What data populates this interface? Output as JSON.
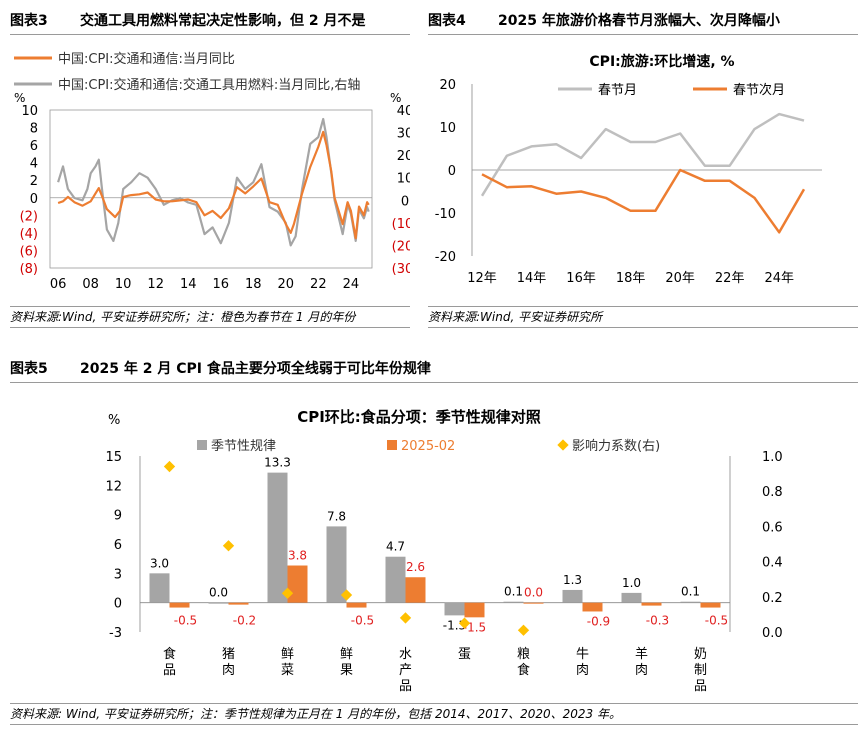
{
  "figure3": {
    "header_label": "图表3",
    "header_title": "交通工具用燃料常起决定性影响，但 2 月不是",
    "footnote": "资料来源:Wind, 平安证券研究所；注：橙色为春节在 1 月的年份",
    "chart_data": {
      "type": "line",
      "title": "",
      "left_unit": "%",
      "right_unit": "%",
      "left_ticks": [
        "10",
        "8",
        "6",
        "4",
        "2",
        "0",
        "(2)",
        "(4)",
        "(6)",
        "(8)"
      ],
      "right_ticks": [
        "40",
        "30",
        "20",
        "10",
        "0",
        "(10)",
        "(20)",
        "(30)"
      ],
      "x_ticks": [
        "06",
        "08",
        "10",
        "12",
        "14",
        "16",
        "18",
        "20",
        "22",
        "24"
      ],
      "ylim_left": [
        -8,
        10
      ],
      "ylim_right": [
        -30,
        40
      ],
      "xlim": [
        2005.5,
        2025.3
      ],
      "colors": {
        "orange": "#ED7D31",
        "gray": "#A5A5A5",
        "negative_tick": "#D00000"
      },
      "series": [
        {
          "name": "中国:CPI:交通和通信:当月同比",
          "axis": "left",
          "color": "#ED7D31",
          "points": [
            [
              2006.0,
              -0.6
            ],
            [
              2006.3,
              -0.4
            ],
            [
              2006.6,
              0.1
            ],
            [
              2007.0,
              -0.5
            ],
            [
              2007.5,
              -0.9
            ],
            [
              2008.0,
              -0.4
            ],
            [
              2008.3,
              0.5
            ],
            [
              2008.5,
              1.1
            ],
            [
              2008.7,
              0.2
            ],
            [
              2009.0,
              -1.3
            ],
            [
              2009.5,
              -2.2
            ],
            [
              2009.8,
              -1.5
            ],
            [
              2010.0,
              0.1
            ],
            [
              2010.5,
              0.3
            ],
            [
              2011.0,
              0.4
            ],
            [
              2011.5,
              0.6
            ],
            [
              2012.0,
              -0.2
            ],
            [
              2012.5,
              -0.4
            ],
            [
              2013.0,
              -0.4
            ],
            [
              2013.5,
              -0.3
            ],
            [
              2014.0,
              -0.2
            ],
            [
              2014.5,
              -0.5
            ],
            [
              2015.0,
              -2.0
            ],
            [
              2015.5,
              -1.5
            ],
            [
              2016.0,
              -2.3
            ],
            [
              2016.5,
              -1.2
            ],
            [
              2017.0,
              1.2
            ],
            [
              2017.5,
              0.5
            ],
            [
              2018.0,
              1.3
            ],
            [
              2018.5,
              2.2
            ],
            [
              2019.0,
              -0.5
            ],
            [
              2019.5,
              -0.8
            ],
            [
              2020.0,
              -3.0
            ],
            [
              2020.3,
              -4.0
            ],
            [
              2020.5,
              -3.0
            ],
            [
              2021.0,
              0.5
            ],
            [
              2021.5,
              3.5
            ],
            [
              2022.0,
              5.8
            ],
            [
              2022.3,
              7.5
            ],
            [
              2022.5,
              6.0
            ],
            [
              2022.8,
              3.0
            ],
            [
              2023.0,
              0.0
            ],
            [
              2023.5,
              -3.0
            ],
            [
              2023.8,
              -0.5
            ],
            [
              2024.0,
              -1.5
            ],
            [
              2024.3,
              -4.6
            ],
            [
              2024.5,
              -1.0
            ],
            [
              2024.8,
              -2.0
            ],
            [
              2025.0,
              -0.5
            ],
            [
              2025.1,
              -0.8
            ]
          ]
        },
        {
          "name": "中国:CPI:交通和通信:交通工具用燃料:当月同比,右轴",
          "axis": "right",
          "color": "#A5A5A5",
          "points": [
            [
              2006.0,
              8
            ],
            [
              2006.3,
              15
            ],
            [
              2006.6,
              5
            ],
            [
              2007.0,
              1
            ],
            [
              2007.5,
              0
            ],
            [
              2007.8,
              5
            ],
            [
              2008.0,
              12
            ],
            [
              2008.3,
              15
            ],
            [
              2008.5,
              18
            ],
            [
              2008.7,
              5
            ],
            [
              2009.0,
              -13
            ],
            [
              2009.4,
              -18
            ],
            [
              2009.7,
              -10
            ],
            [
              2010.0,
              5
            ],
            [
              2010.5,
              8
            ],
            [
              2011.0,
              12
            ],
            [
              2011.5,
              10
            ],
            [
              2012.0,
              5
            ],
            [
              2012.5,
              -2
            ],
            [
              2013.0,
              0
            ],
            [
              2013.5,
              1
            ],
            [
              2014.0,
              -1
            ],
            [
              2014.5,
              -2
            ],
            [
              2015.0,
              -15
            ],
            [
              2015.5,
              -12
            ],
            [
              2016.0,
              -19
            ],
            [
              2016.5,
              -10
            ],
            [
              2017.0,
              10
            ],
            [
              2017.5,
              5
            ],
            [
              2018.0,
              8
            ],
            [
              2018.5,
              16
            ],
            [
              2019.0,
              -3
            ],
            [
              2019.5,
              -5
            ],
            [
              2020.0,
              -10
            ],
            [
              2020.3,
              -20
            ],
            [
              2020.6,
              -16
            ],
            [
              2021.0,
              5
            ],
            [
              2021.5,
              25
            ],
            [
              2022.0,
              28
            ],
            [
              2022.3,
              36
            ],
            [
              2022.5,
              28
            ],
            [
              2022.8,
              12
            ],
            [
              2023.0,
              0
            ],
            [
              2023.5,
              -15
            ],
            [
              2023.8,
              -2
            ],
            [
              2024.0,
              -6
            ],
            [
              2024.3,
              -18
            ],
            [
              2024.5,
              -4
            ],
            [
              2024.8,
              -8
            ],
            [
              2025.0,
              -3
            ],
            [
              2025.1,
              -5
            ]
          ]
        }
      ]
    }
  },
  "figure4": {
    "header_label": "图表4",
    "header_title": "2025 年旅游价格春节月涨幅大、次月降幅小",
    "footnote": "资料来源:Wind, 平安证券研究所",
    "chart_data": {
      "type": "line",
      "title": "CPI:旅游:环比增速, %",
      "x": [
        2012,
        2013,
        2014,
        2015,
        2016,
        2017,
        2018,
        2019,
        2020,
        2021,
        2022,
        2023,
        2024,
        2025
      ],
      "x_ticks": [
        "12年",
        "14年",
        "16年",
        "18年",
        "20年",
        "22年",
        "24年"
      ],
      "y_ticks": [
        "20",
        "10",
        "0",
        "-10",
        "-20"
      ],
      "ylim": [
        -20,
        20
      ],
      "legend_position": "top",
      "series": [
        {
          "name": "春节月",
          "color": "#BFBFBF",
          "values": [
            -6.0,
            3.3,
            5.5,
            6.0,
            2.8,
            9.5,
            6.5,
            6.5,
            8.5,
            1.0,
            1.0,
            9.5,
            13.0,
            11.5
          ]
        },
        {
          "name": "春节次月",
          "color": "#ED7D31",
          "values": [
            -1.0,
            -4.0,
            -3.8,
            -5.5,
            -5.0,
            -6.5,
            -9.5,
            -9.5,
            0.0,
            -2.5,
            -2.5,
            -6.5,
            -14.5,
            -4.5
          ]
        }
      ]
    }
  },
  "figure5": {
    "header_label": "图表5",
    "header_title": "2025 年 2 月 CPI 食品主要分项全线弱于可比年份规律",
    "footnote": "资料来源: Wind, 平安证券研究所；注：季节性规律为正月在 1 月的年份，包括 2014、2017、2020、2023 年。",
    "chart_data": {
      "type": "bar",
      "title": "CPI环比:食品分项：季节性规律对照",
      "y_unit": "%",
      "categories": [
        "食品",
        "猪肉",
        "鲜菜",
        "鲜果",
        "水产品",
        "蛋",
        "粮食",
        "牛肉",
        "羊肉",
        "奶制品"
      ],
      "ylim": [
        -3,
        15
      ],
      "y_ticks": [
        "15",
        "12",
        "9",
        "6",
        "3",
        "0",
        "-3"
      ],
      "y2lim": [
        0,
        1
      ],
      "y2_ticks": [
        "1.0",
        "0.8",
        "0.6",
        "0.4",
        "0.2",
        "0.0"
      ],
      "legend_position": "top",
      "series": [
        {
          "name": "季节性规律",
          "color": "#A5A5A5",
          "values": [
            3.0,
            0.0,
            13.3,
            7.8,
            4.7,
            -1.3,
            0.1,
            1.3,
            1.0,
            0.1
          ],
          "labels": [
            "3.0",
            "0.0",
            "13.3",
            "7.8",
            "4.7",
            "-1.3",
            "0.1",
            "1.3",
            "1.0",
            "0.1"
          ]
        },
        {
          "name": "2025-02",
          "color": "#ED7D31",
          "values": [
            -0.5,
            -0.2,
            3.8,
            -0.5,
            2.6,
            -1.5,
            0.0,
            -0.9,
            -0.3,
            -0.5
          ],
          "labels": [
            "-0.5",
            "-0.2",
            "3.8",
            "-0.5",
            "2.6",
            "-1.5",
            "0.0",
            "-0.9",
            "-0.3",
            "-0.5"
          ]
        },
        {
          "name": "影响力系数(右)",
          "color": "#FFC000",
          "type": "scatter",
          "axis": "right",
          "values": [
            0.94,
            0.49,
            0.22,
            0.21,
            0.08,
            0.05,
            0.01,
            null,
            null,
            null
          ]
        }
      ]
    }
  }
}
